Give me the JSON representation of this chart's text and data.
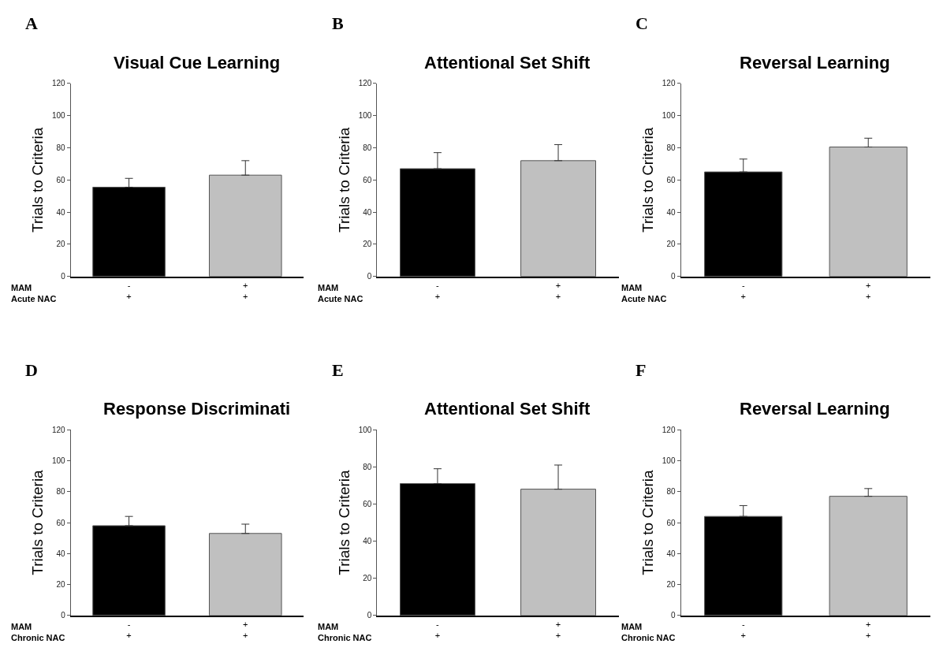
{
  "chart_data": [
    {
      "type": "bar",
      "title": "Visual Cue Learning",
      "ylabel": "Trials to Criteria",
      "categories": [
        "-\n+",
        "+\n+"
      ],
      "values": [
        55.5,
        63
      ],
      "colors": [
        "#000000",
        "#c0c0c0"
      ],
      "errors": [
        [
          55.5,
          61
        ],
        [
          63,
          72
        ]
      ],
      "ylim": [
        0,
        120
      ],
      "yticks": [
        0,
        20,
        40,
        60,
        80,
        100,
        120
      ],
      "annotations": [
        "A",
        "MAM\nAcute NAC"
      ]
    },
    {
      "type": "bar",
      "title": "Attentional Set Shift",
      "ylabel": "Trials to Criteria",
      "categories": [
        "-\n+",
        "+\n+"
      ],
      "values": [
        67,
        72
      ],
      "colors": [
        "#000000",
        "#c0c0c0"
      ],
      "errors": [
        [
          67,
          77
        ],
        [
          72,
          82
        ]
      ],
      "ylim": [
        0,
        120
      ],
      "yticks": [
        0,
        20,
        40,
        60,
        80,
        100,
        120
      ],
      "annotations": [
        "B",
        "MAM\nAcute NAC"
      ]
    },
    {
      "type": "bar",
      "title": "Reversal Learning",
      "ylabel": "Trials to Criteria",
      "categories": [
        "-\n+",
        "+\n+"
      ],
      "values": [
        65,
        80.5
      ],
      "colors": [
        "#000000",
        "#c0c0c0"
      ],
      "errors": [
        [
          65,
          73
        ],
        [
          80.5,
          86
        ]
      ],
      "ylim": [
        0,
        120
      ],
      "yticks": [
        0,
        20,
        40,
        60,
        80,
        100,
        120
      ],
      "annotations": [
        "C",
        "MAM\nAcute NAC"
      ]
    },
    {
      "type": "bar",
      "title": "Response Discriminati",
      "ylabel": "Trials to Criteria",
      "categories": [
        "-\n+",
        "+\n+"
      ],
      "values": [
        58,
        53
      ],
      "colors": [
        "#000000",
        "#c0c0c0"
      ],
      "errors": [
        [
          58,
          64
        ],
        [
          53,
          59
        ]
      ],
      "ylim": [
        0,
        120
      ],
      "yticks": [
        0,
        20,
        40,
        60,
        80,
        100,
        120
      ],
      "annotations": [
        "D",
        "MAM\nChronic NAC"
      ]
    },
    {
      "type": "bar",
      "title": "Attentional Set Shift",
      "ylabel": "Trials to Criteria",
      "categories": [
        "-\n+",
        "+\n+"
      ],
      "values": [
        71,
        68
      ],
      "colors": [
        "#000000",
        "#c0c0c0"
      ],
      "errors": [
        [
          71,
          79
        ],
        [
          68,
          81
        ]
      ],
      "ylim": [
        0,
        100
      ],
      "yticks": [
        0,
        20,
        40,
        60,
        80,
        100
      ],
      "annotations": [
        "E",
        "MAM\nChronic NAC"
      ]
    },
    {
      "type": "bar",
      "title": "Reversal Learning",
      "ylabel": "Trials to Criteria",
      "categories": [
        "-\n+",
        "+\n+"
      ],
      "values": [
        64,
        77
      ],
      "colors": [
        "#000000",
        "#c0c0c0"
      ],
      "errors": [
        [
          64,
          71
        ],
        [
          77,
          82
        ]
      ],
      "ylim": [
        0,
        120
      ],
      "yticks": [
        0,
        20,
        40,
        60,
        80,
        100,
        120
      ],
      "annotations": [
        "F",
        "MAM\nChronic NAC"
      ]
    }
  ]
}
